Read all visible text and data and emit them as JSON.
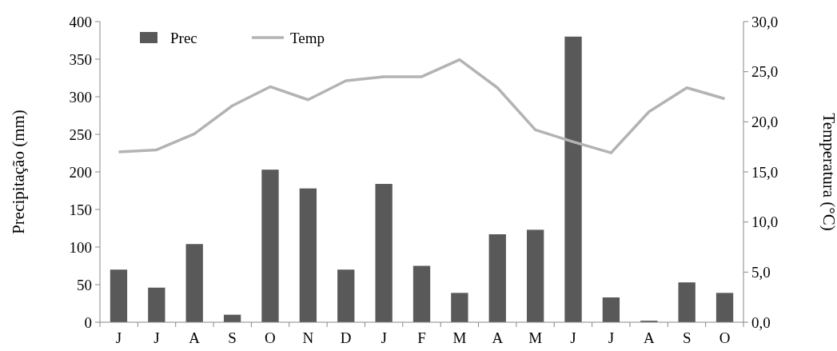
{
  "chart_data": {
    "type": "bar",
    "ylabel": "Precipitação (mm)",
    "y2label": "Temperatura (°C)",
    "categories": [
      "J",
      "J",
      "A",
      "S",
      "O",
      "N",
      "D",
      "J",
      "F",
      "M",
      "A",
      "M",
      "J",
      "J",
      "A",
      "S",
      "O"
    ],
    "series": [
      {
        "name": "Prec",
        "color": "#595959",
        "values": [
          70,
          46,
          104,
          10,
          203,
          178,
          70,
          184,
          75,
          39,
          117,
          123,
          380,
          33,
          2,
          53,
          39
        ]
      },
      {
        "name": "Temp",
        "type": "line",
        "axis": "y2",
        "color": "#b3b3b3",
        "values": [
          17.0,
          17.2,
          18.8,
          21.6,
          23.5,
          22.2,
          24.1,
          24.5,
          24.5,
          26.2,
          23.4,
          19.2,
          18.0,
          16.9,
          21.0,
          23.4,
          22.3
        ]
      }
    ],
    "ylim": [
      0,
      400
    ],
    "yticks": [
      0,
      50,
      100,
      150,
      200,
      250,
      300,
      350,
      400
    ],
    "y2lim": [
      0,
      30
    ],
    "y2ticks": [
      {
        "value": 0,
        "label": "0,0"
      },
      {
        "value": 5,
        "label": "5,0"
      },
      {
        "value": 10,
        "label": "10,0"
      },
      {
        "value": 15,
        "label": "15,0"
      },
      {
        "value": 20,
        "label": "20,0"
      },
      {
        "value": 25,
        "label": "25,0"
      },
      {
        "value": 30,
        "label": "30,0"
      }
    ],
    "legend": "top left",
    "grid": false,
    "marker": "none",
    "line_style": "solid"
  }
}
